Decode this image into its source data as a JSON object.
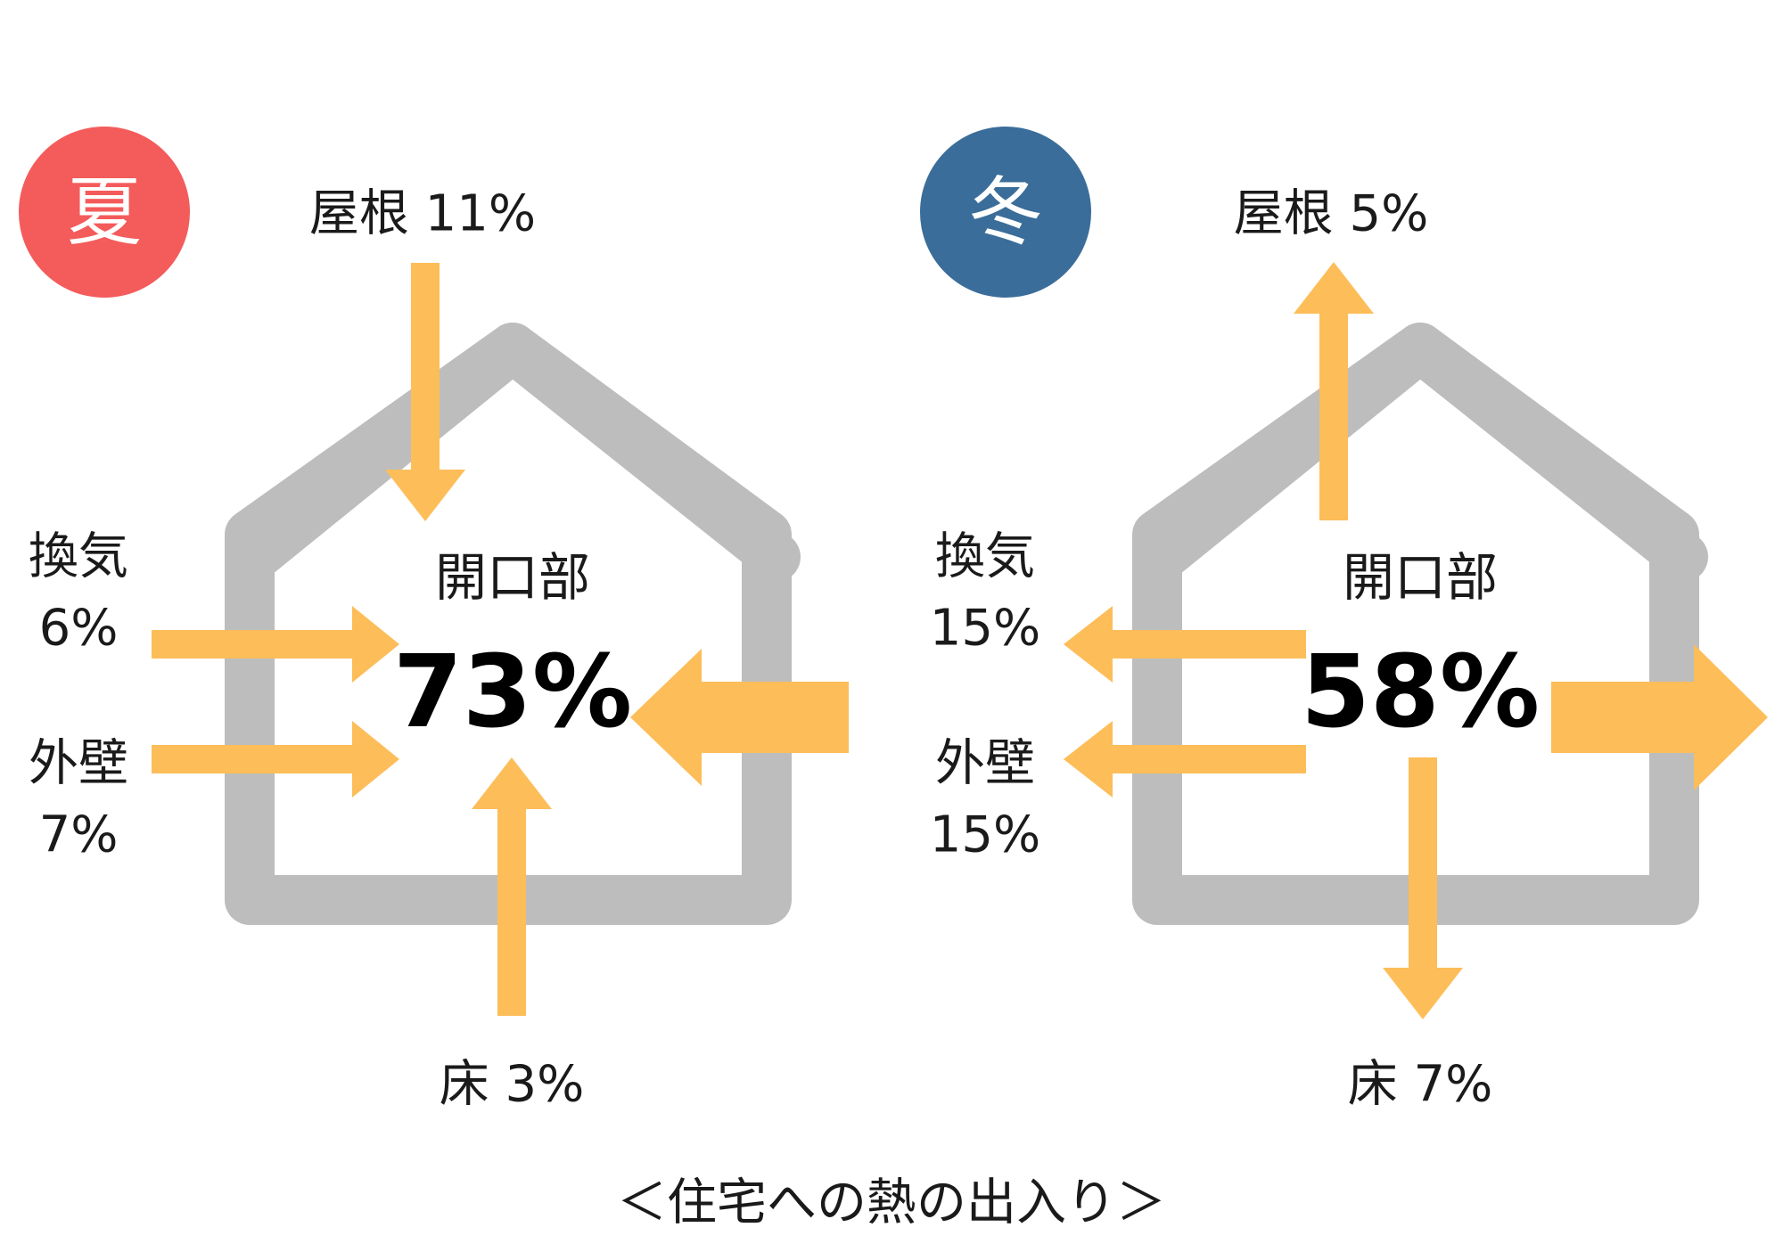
{
  "caption": "＜住宅への熱の出入り＞",
  "colors": {
    "house": "#bdbdbd",
    "arrow": "#fdbd59",
    "summer_badge": "#f45b5b",
    "winter_badge": "#3a6d99"
  },
  "summer": {
    "season_label": "夏",
    "roof_label": "屋根 11%",
    "ventilation_name": "換気",
    "ventilation_value": "6%",
    "wall_name": "外壁",
    "wall_value": "7%",
    "opening_name": "開口部",
    "opening_value": "73%",
    "floor_label": "床 3%"
  },
  "winter": {
    "season_label": "冬",
    "roof_label": "屋根 5%",
    "ventilation_name": "換気",
    "ventilation_value": "15%",
    "wall_name": "外壁",
    "wall_value": "15%",
    "opening_name": "開口部",
    "opening_value": "58%",
    "floor_label": "床 7%"
  }
}
